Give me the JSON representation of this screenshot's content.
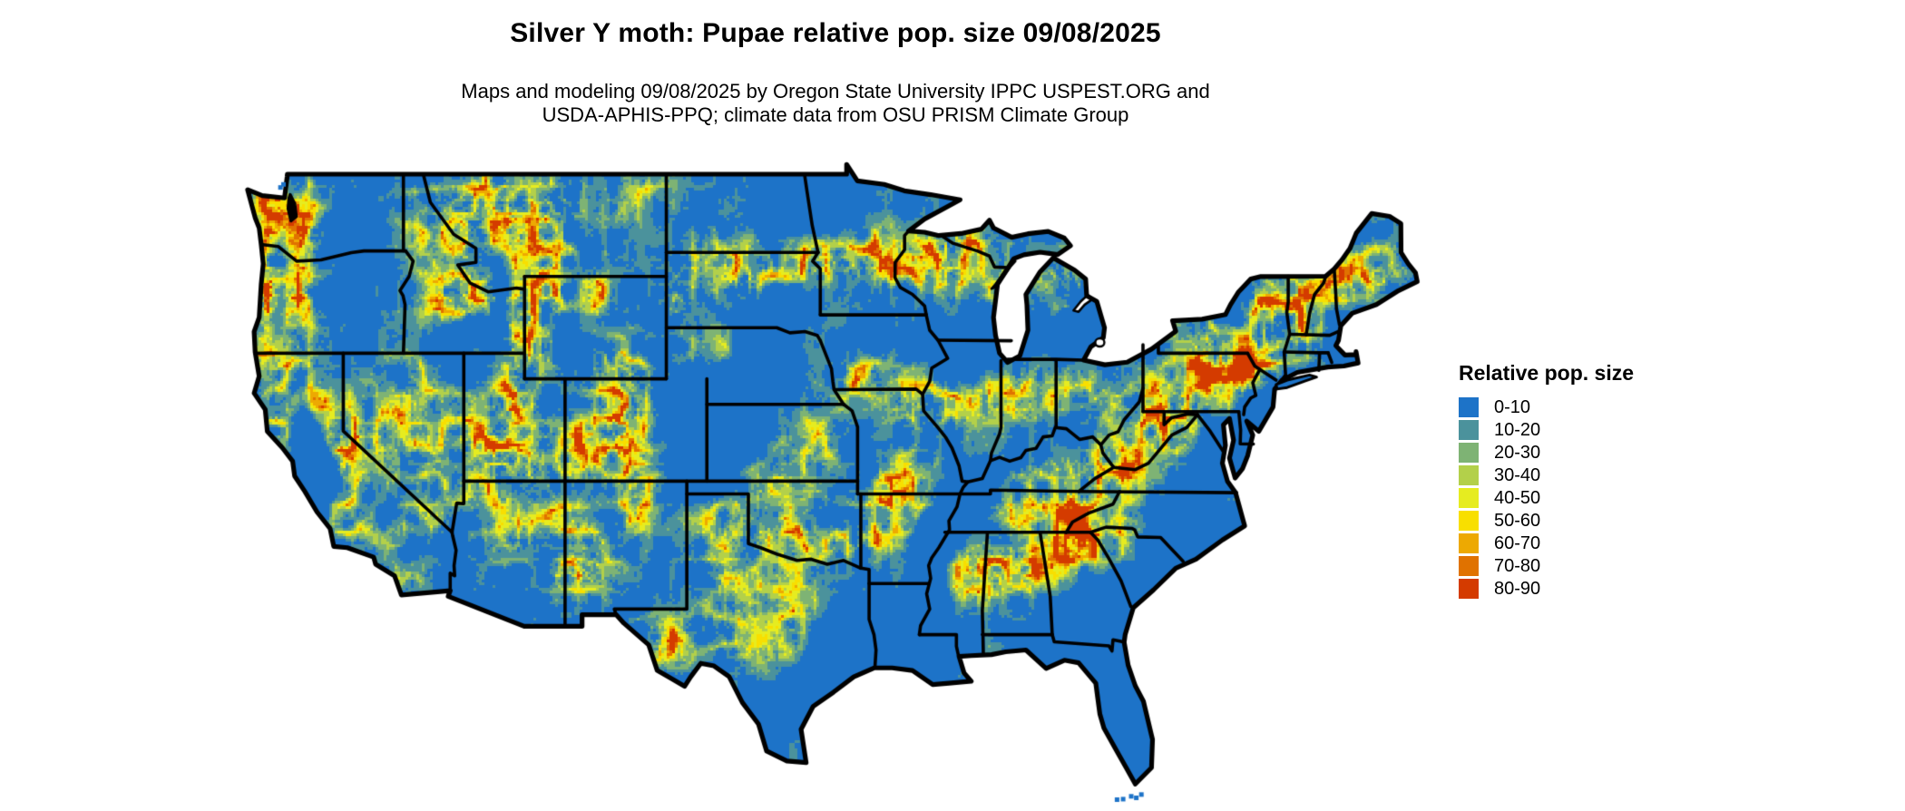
{
  "header": {
    "title": "Silver Y moth: Pupae relative pop. size 09/08/2025",
    "subtitle_line1": "Maps and modeling 09/08/2025 by Oregon State University IPPC USPEST.ORG and",
    "subtitle_line2": "USDA-APHIS-PPQ; climate data from OSU PRISM Climate Group"
  },
  "legend": {
    "title": "Relative pop. size",
    "items": [
      {
        "label": "0-10",
        "color": "#1d73c8"
      },
      {
        "label": "10-20",
        "color": "#4b929c"
      },
      {
        "label": "20-30",
        "color": "#7eb374"
      },
      {
        "label": "30-40",
        "color": "#b3d04a"
      },
      {
        "label": "40-50",
        "color": "#e6ec20"
      },
      {
        "label": "50-60",
        "color": "#f8df00"
      },
      {
        "label": "60-70",
        "color": "#eda902"
      },
      {
        "label": "70-80",
        "color": "#e07200"
      },
      {
        "label": "80-90",
        "color": "#d43b00"
      }
    ]
  },
  "map": {
    "background_color": "#ffffff",
    "water_color": "#ffffff",
    "border_color": "#000000",
    "base_class_color": "#1d73c8"
  }
}
